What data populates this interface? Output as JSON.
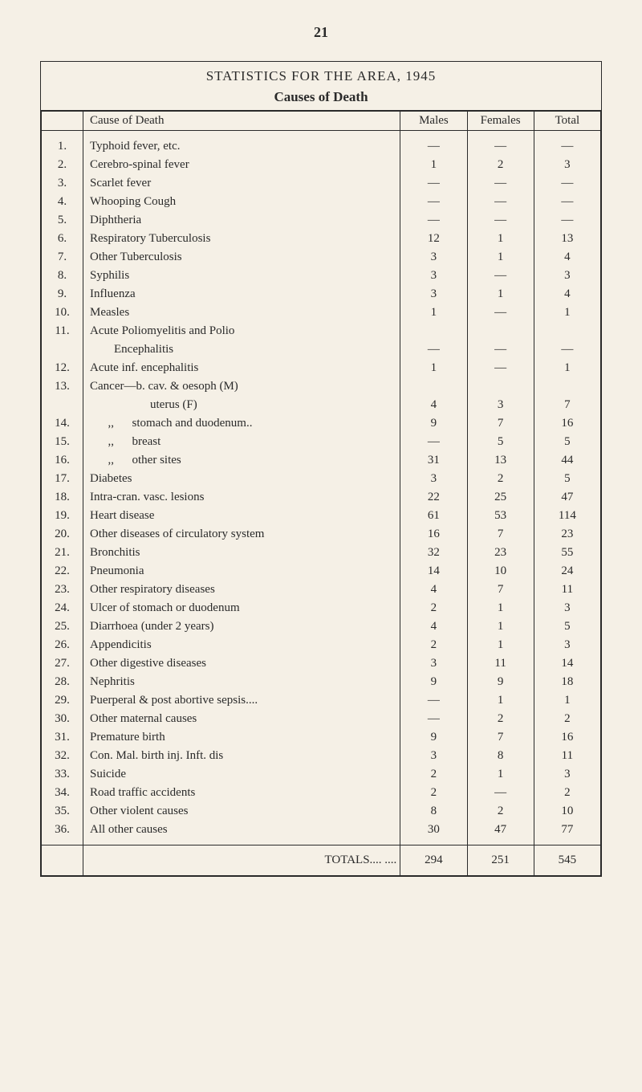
{
  "page_number": "21",
  "title": "STATISTICS FOR THE AREA, 1945",
  "subtitle": "Causes of Death",
  "headers": {
    "num": "",
    "cause": "Cause of Death",
    "males": "Males",
    "females": "Females",
    "total": "Total"
  },
  "rows": [
    {
      "num": "1.",
      "cause": "Typhoid fever, etc.",
      "males": "—",
      "females": "—",
      "total": "—"
    },
    {
      "num": "2.",
      "cause": "Cerebro-spinal fever",
      "males": "1",
      "females": "2",
      "total": "3"
    },
    {
      "num": "3.",
      "cause": "Scarlet fever",
      "males": "—",
      "females": "—",
      "total": "—"
    },
    {
      "num": "4.",
      "cause": "Whooping Cough",
      "males": "—",
      "females": "—",
      "total": "—"
    },
    {
      "num": "5.",
      "cause": "Diphtheria",
      "males": "—",
      "females": "—",
      "total": "—"
    },
    {
      "num": "6.",
      "cause": "Respiratory Tuberculosis",
      "males": "12",
      "females": "1",
      "total": "13"
    },
    {
      "num": "7.",
      "cause": "Other Tuberculosis",
      "males": "3",
      "females": "1",
      "total": "4"
    },
    {
      "num": "8.",
      "cause": "Syphilis",
      "males": "3",
      "females": "—",
      "total": "3"
    },
    {
      "num": "9.",
      "cause": "Influenza",
      "males": "3",
      "females": "1",
      "total": "4"
    },
    {
      "num": "10.",
      "cause": "Measles",
      "males": "1",
      "females": "—",
      "total": "1"
    },
    {
      "num": "11.",
      "cause": "Acute Poliomyelitis and Polio",
      "males": "",
      "females": "",
      "total": ""
    },
    {
      "num": "",
      "cause": "        Encephalitis",
      "males": "—",
      "females": "—",
      "total": "—"
    },
    {
      "num": "12.",
      "cause": "Acute inf. encephalitis",
      "males": "1",
      "females": "—",
      "total": "1"
    },
    {
      "num": "13.",
      "cause": "Cancer—b. cav. & oesoph (M)",
      "males": "",
      "females": "",
      "total": ""
    },
    {
      "num": "",
      "cause": "                    uterus (F)",
      "males": "4",
      "females": "3",
      "total": "7"
    },
    {
      "num": "14.",
      "cause": "      ,,      stomach and duodenum..",
      "males": "9",
      "females": "7",
      "total": "16"
    },
    {
      "num": "15.",
      "cause": "      ,,      breast",
      "males": "—",
      "females": "5",
      "total": "5"
    },
    {
      "num": "16.",
      "cause": "      ,,      other sites",
      "males": "31",
      "females": "13",
      "total": "44"
    },
    {
      "num": "17.",
      "cause": "Diabetes",
      "males": "3",
      "females": "2",
      "total": "5"
    },
    {
      "num": "18.",
      "cause": "Intra-cran. vasc. lesions",
      "males": "22",
      "females": "25",
      "total": "47"
    },
    {
      "num": "19.",
      "cause": "Heart disease",
      "males": "61",
      "females": "53",
      "total": "114"
    },
    {
      "num": "20.",
      "cause": "Other diseases of circulatory system",
      "males": "16",
      "females": "7",
      "total": "23"
    },
    {
      "num": "21.",
      "cause": "Bronchitis",
      "males": "32",
      "females": "23",
      "total": "55"
    },
    {
      "num": "22.",
      "cause": "Pneumonia",
      "males": "14",
      "females": "10",
      "total": "24"
    },
    {
      "num": "23.",
      "cause": "Other respiratory diseases",
      "males": "4",
      "females": "7",
      "total": "11"
    },
    {
      "num": "24.",
      "cause": "Ulcer of stomach or duodenum",
      "males": "2",
      "females": "1",
      "total": "3"
    },
    {
      "num": "25.",
      "cause": "Diarrhoea (under 2 years)",
      "males": "4",
      "females": "1",
      "total": "5"
    },
    {
      "num": "26.",
      "cause": "Appendicitis",
      "males": "2",
      "females": "1",
      "total": "3"
    },
    {
      "num": "27.",
      "cause": "Other digestive diseases",
      "males": "3",
      "females": "11",
      "total": "14"
    },
    {
      "num": "28.",
      "cause": "Nephritis",
      "males": "9",
      "females": "9",
      "total": "18"
    },
    {
      "num": "29.",
      "cause": "Puerperal & post abortive sepsis....",
      "males": "—",
      "females": "1",
      "total": "1"
    },
    {
      "num": "30.",
      "cause": "Other maternal causes",
      "males": "—",
      "females": "2",
      "total": "2"
    },
    {
      "num": "31.",
      "cause": "Premature birth",
      "males": "9",
      "females": "7",
      "total": "16"
    },
    {
      "num": "32.",
      "cause": "Con. Mal. birth inj. Inft. dis",
      "males": "3",
      "females": "8",
      "total": "11"
    },
    {
      "num": "33.",
      "cause": "Suicide",
      "males": "2",
      "females": "1",
      "total": "3"
    },
    {
      "num": "34.",
      "cause": "Road traffic accidents",
      "males": "2",
      "females": "—",
      "total": "2"
    },
    {
      "num": "35.",
      "cause": "Other violent causes",
      "males": "8",
      "females": "2",
      "total": "10"
    },
    {
      "num": "36.",
      "cause": "All other causes",
      "males": "30",
      "females": "47",
      "total": "77"
    }
  ],
  "totals": {
    "label": "TOTALS....    ....",
    "males": "294",
    "females": "251",
    "total": "545"
  }
}
